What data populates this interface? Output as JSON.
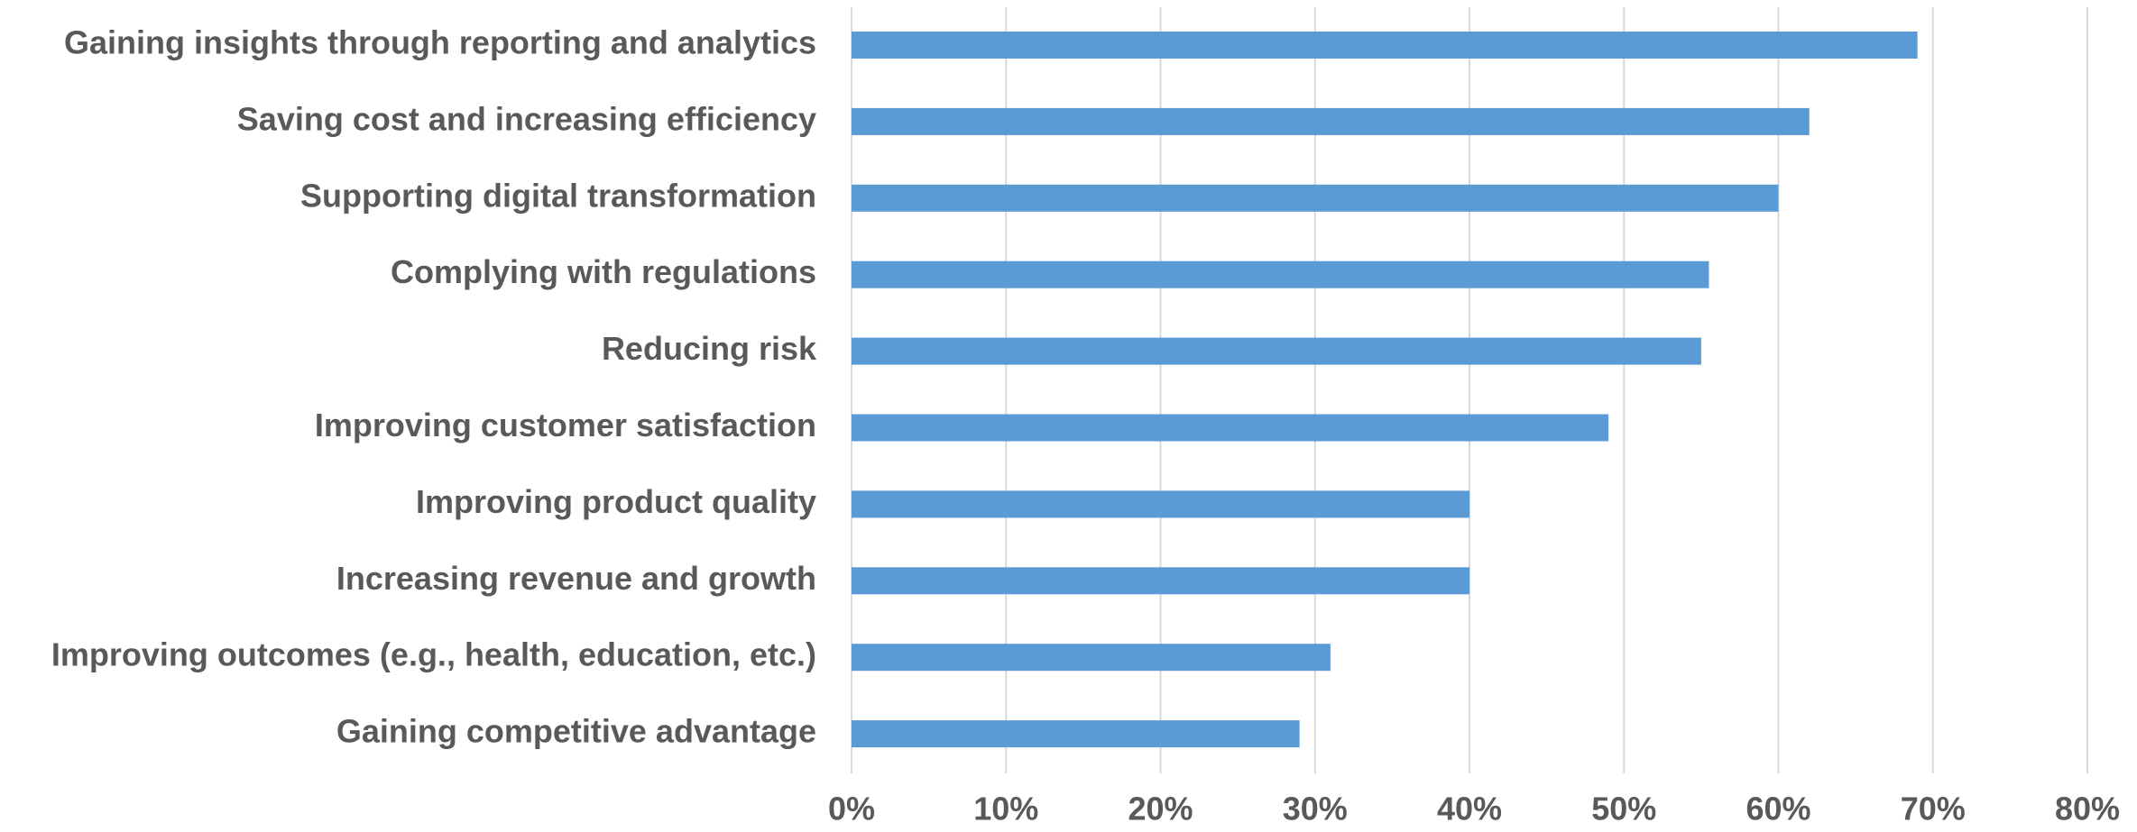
{
  "chart_data": {
    "type": "bar",
    "orientation": "horizontal",
    "categories": [
      "Gaining insights through reporting and analytics",
      "Saving cost and increasing efficiency",
      "Supporting digital transformation",
      "Complying with regulations",
      "Reducing risk",
      "Improving customer satisfaction",
      "Improving product quality",
      "Increasing revenue and growth",
      "Improving outcomes (e.g., health, education, etc.)",
      "Gaining competitive advantage"
    ],
    "values": [
      69,
      62,
      60,
      55.5,
      55,
      49,
      40,
      40,
      31,
      29
    ],
    "color": "#5b9bd5",
    "xlim": [
      0,
      80
    ],
    "xticks": [
      {
        "value": 0,
        "label": "0%"
      },
      {
        "value": 10,
        "label": "10%"
      },
      {
        "value": 20,
        "label": "20%"
      },
      {
        "value": 30,
        "label": "30%"
      },
      {
        "value": 40,
        "label": "40%"
      },
      {
        "value": 50,
        "label": "50%"
      },
      {
        "value": 60,
        "label": "60%"
      },
      {
        "value": 70,
        "label": "70%"
      },
      {
        "value": 80,
        "label": "80%"
      }
    ],
    "grid": true
  }
}
